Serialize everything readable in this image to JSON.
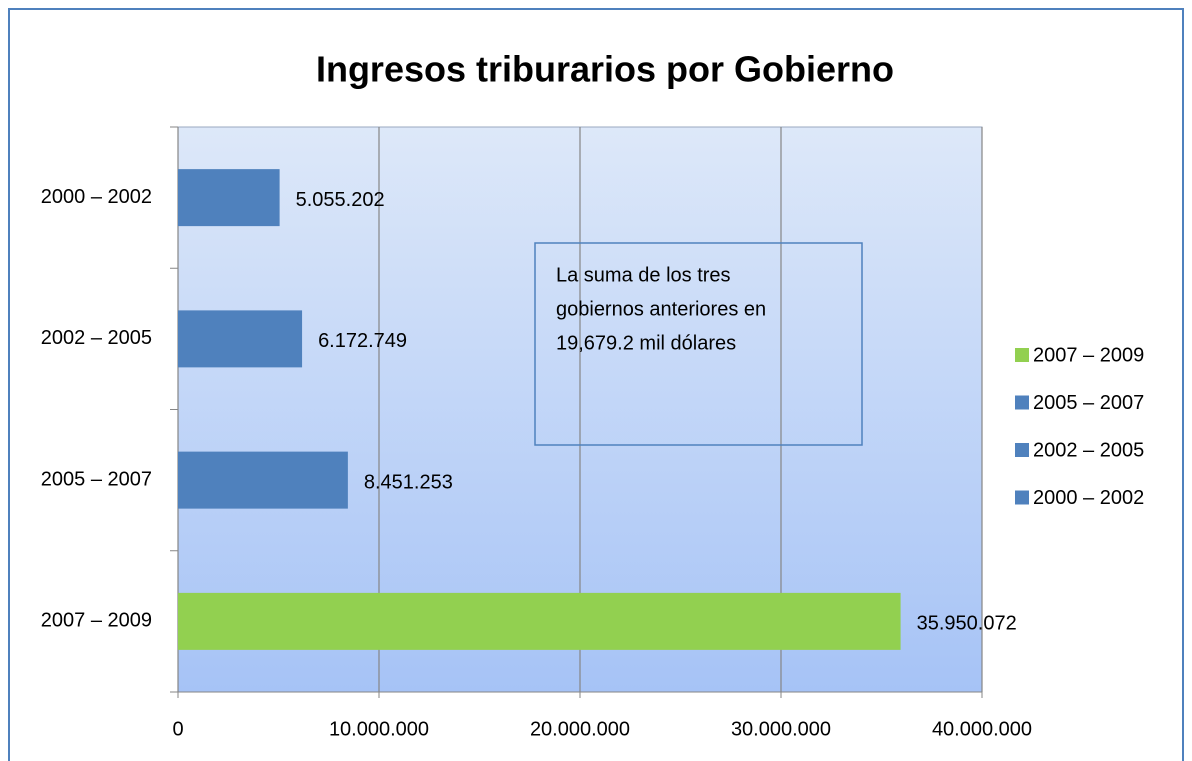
{
  "chart_data": {
    "type": "bar",
    "orientation": "horizontal",
    "title": "Ingresos triburarios por Gobierno",
    "categories": [
      "2000 – 2002",
      "2002 – 2005",
      "2005 – 2007",
      "2007 – 2009"
    ],
    "values": [
      5055202,
      6172749,
      8451253,
      35950072
    ],
    "value_labels": [
      "5.055.202",
      "6.172.749",
      "8.451.253",
      "35.950.072"
    ],
    "colors": [
      "#4f81bd",
      "#4f81bd",
      "#4f81bd",
      "#92d050"
    ],
    "xlim": [
      0,
      40000000
    ],
    "xticks": [
      0,
      {
        "value": 10000000,
        "label": "10.000.000"
      },
      {
        "value": 20000000,
        "label": "20.000.000"
      },
      {
        "value": 30000000,
        "label": "30.000.000"
      },
      {
        "value": 40000000,
        "label": "40.000.000"
      }
    ],
    "grid": true,
    "legend": "right",
    "annotation": [
      "La suma de los tres",
      "gobiernos anteriores en",
      "19,679.2 mil dólares"
    ]
  }
}
